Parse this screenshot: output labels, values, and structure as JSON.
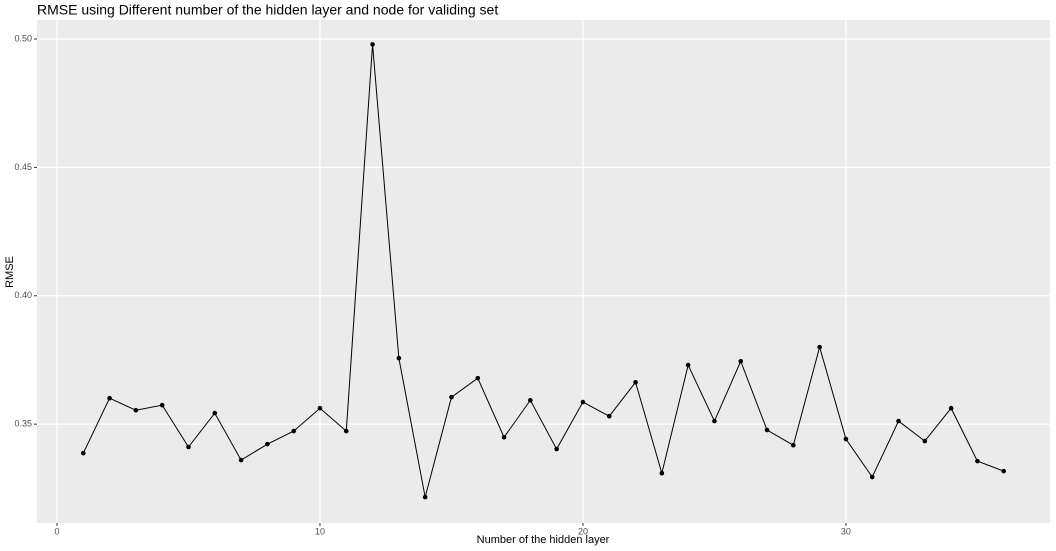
{
  "chart_data": {
    "type": "line",
    "title": "RMSE using Different number of the hidden layer and node for validing set",
    "xlabel": "Number of the hidden layer",
    "ylabel": "RMSE",
    "x": [
      1,
      2,
      3,
      4,
      5,
      6,
      7,
      8,
      9,
      10,
      11,
      12,
      13,
      14,
      15,
      16,
      17,
      18,
      19,
      20,
      21,
      22,
      23,
      24,
      25,
      26,
      27,
      28,
      29,
      30,
      31,
      32,
      33,
      34,
      35,
      36
    ],
    "series": [
      {
        "color": "#000000",
        "values": [
          0.3387,
          0.3601,
          0.3554,
          0.3574,
          0.3411,
          0.3543,
          0.336,
          0.3422,
          0.3473,
          0.3562,
          0.3473,
          0.4979,
          0.3757,
          0.3216,
          0.3605,
          0.3679,
          0.3449,
          0.3593,
          0.3403,
          0.3586,
          0.3531,
          0.3663,
          0.3309,
          0.373,
          0.3512,
          0.3745,
          0.3477,
          0.3418,
          0.38,
          0.3442,
          0.3294,
          0.3512,
          0.3434,
          0.3562,
          0.3356,
          0.3317
        ]
      }
    ],
    "xlim": [
      -0.76,
      37.76
    ],
    "ylim": [
      0.3115,
      0.5074
    ],
    "xticks": [
      0,
      10,
      20,
      30
    ],
    "yticks": [
      0.35,
      {
        "value": 0.4,
        "label": "0.40"
      },
      0.45,
      {
        "value": 0.5,
        "label": "0.50"
      }
    ],
    "grid": true
  }
}
